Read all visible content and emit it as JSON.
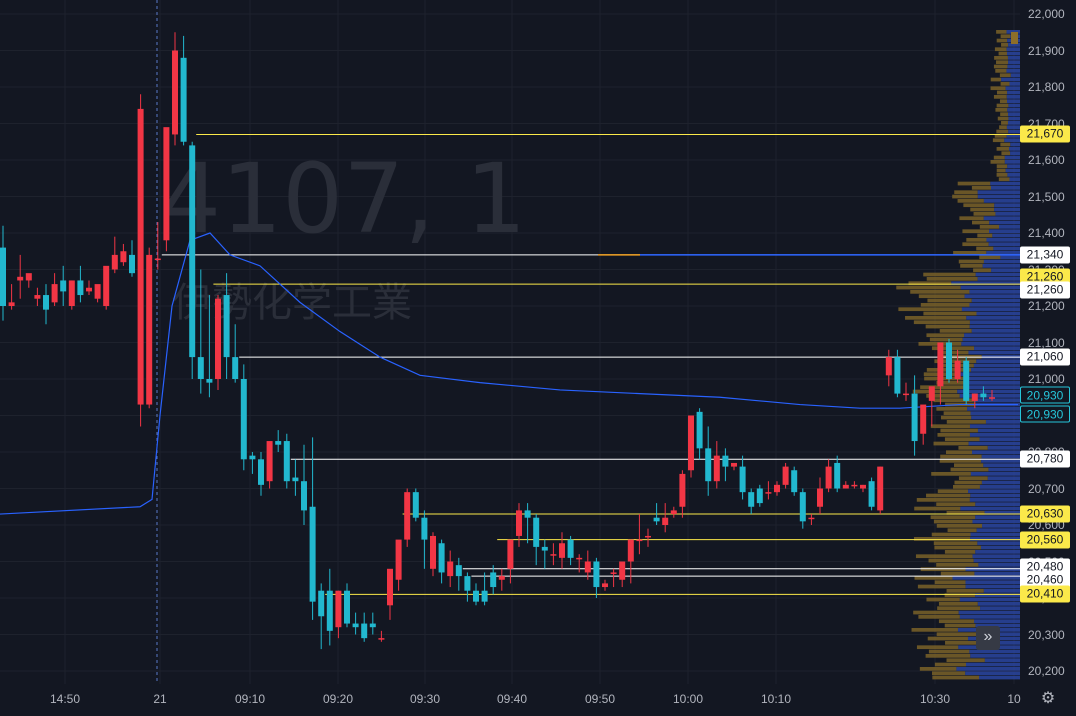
{
  "watermark": {
    "code": "4107, 1",
    "name": "伊勢化学工業"
  },
  "colors": {
    "background": "#131722",
    "up": "#f23645",
    "down": "#22ab94",
    "down_display": "#26c6da",
    "vwap": "#2962ff",
    "vp_up": "#8d6e2a",
    "vp_down": "#2a45a0",
    "level_yellow": "#fbe94a",
    "level_white": "#ffffff"
  },
  "price_axis": {
    "ticks": [
      "22,000",
      "21,900",
      "21,800",
      "21,700",
      "21,600",
      "21,500",
      "21,400",
      "21,300",
      "21,200",
      "21,100",
      "21,000",
      "20,900",
      "20,800",
      "20,700",
      "20,600",
      "20,500",
      "20,400",
      "20,300",
      "20,200"
    ]
  },
  "time_axis": {
    "ticks": [
      "14:50",
      "21",
      "09:10",
      "09:20",
      "09:30",
      "09:40",
      "09:50",
      "10:00",
      "10:10",
      "10:30",
      "10"
    ]
  },
  "price_tags": [
    {
      "label": "21,670",
      "style": "yellow",
      "value": 21670
    },
    {
      "label": "21,340",
      "style": "white",
      "value": 21340
    },
    {
      "label": "21,260",
      "style": "yellow",
      "value": 21280
    },
    {
      "label": "21,260",
      "style": "white",
      "value": 21245
    },
    {
      "label": "21,060",
      "style": "white",
      "value": 21060
    },
    {
      "label": "20,930",
      "style": "cyan",
      "value": 20955
    },
    {
      "label": "20,930",
      "style": "cyan",
      "value": 20905
    },
    {
      "label": "20,780",
      "style": "white",
      "value": 20780
    },
    {
      "label": "20,630",
      "style": "yellow",
      "value": 20630
    },
    {
      "label": "20,560",
      "style": "yellow",
      "value": 20560
    },
    {
      "label": "20,480",
      "style": "white",
      "value": 20485
    },
    {
      "label": "20,460",
      "style": "white",
      "value": 20450
    },
    {
      "label": "20,410",
      "style": "yellow",
      "value": 20410
    }
  ],
  "level_lines": [
    {
      "price": 21670,
      "start": 22,
      "color": "yellow"
    },
    {
      "price": 21340,
      "start": 18,
      "color": "white"
    },
    {
      "price": 21260,
      "start": 24,
      "color": "yellow"
    },
    {
      "price": 21060,
      "start": 27,
      "color": "white"
    },
    {
      "price": 20780,
      "start": 33,
      "color": "white"
    },
    {
      "price": 20630,
      "start": 46,
      "color": "yellow"
    },
    {
      "price": 20560,
      "start": 57,
      "color": "yellow"
    },
    {
      "price": 20480,
      "start": 53,
      "color": "white"
    },
    {
      "price": 20460,
      "start": 54,
      "color": "white"
    },
    {
      "price": 20410,
      "start": 37,
      "color": "yellow"
    }
  ],
  "buttons": {
    "scroll_right": "»",
    "settings": "⚙"
  },
  "chart_data": {
    "type": "candlestick",
    "price_range": [
      20170,
      22030
    ],
    "candles": [
      [
        21360,
        21420,
        21200,
        21160
      ],
      [
        21200,
        21260,
        21210,
        21190
      ],
      [
        21270,
        21340,
        21280,
        21220
      ],
      [
        21270,
        21280,
        21290,
        21250
      ],
      [
        21220,
        21250,
        21230,
        21200
      ],
      [
        21230,
        21260,
        21190,
        21150
      ],
      [
        21210,
        21290,
        21260,
        21200
      ],
      [
        21270,
        21310,
        21240,
        21200
      ],
      [
        21200,
        21270,
        21270,
        21190
      ],
      [
        21270,
        21310,
        21230,
        21210
      ],
      [
        21240,
        21270,
        21250,
        21230
      ],
      [
        21220,
        21240,
        21260,
        21210
      ],
      [
        21200,
        21300,
        21310,
        21190
      ],
      [
        21300,
        21390,
        21340,
        21290
      ],
      [
        21320,
        21370,
        21350,
        21310
      ],
      [
        21340,
        21380,
        21290,
        21280
      ],
      [
        20930,
        21780,
        21740,
        20870
      ],
      [
        20930,
        21360,
        21340,
        20920
      ],
      [
        21330,
        21430,
        21330,
        21300
      ],
      [
        21380,
        21680,
        21690,
        21350
      ],
      [
        21670,
        21950,
        21900,
        21640
      ],
      [
        21880,
        21940,
        21650,
        21640
      ],
      [
        21640,
        21650,
        21060,
        21000
      ],
      [
        21060,
        21300,
        21000,
        20960
      ],
      [
        21000,
        21230,
        20990,
        20950
      ],
      [
        21000,
        21230,
        21220,
        20970
      ],
      [
        21230,
        21290,
        21060,
        21000
      ],
      [
        21060,
        21150,
        21000,
        20990
      ],
      [
        21000,
        21040,
        20780,
        20750
      ],
      [
        20790,
        20800,
        20780,
        20740
      ],
      [
        20780,
        20800,
        20710,
        20680
      ],
      [
        20720,
        20810,
        20830,
        20700
      ],
      [
        20830,
        20860,
        20820,
        20800
      ],
      [
        20830,
        20850,
        20720,
        20700
      ],
      [
        20730,
        20780,
        20720,
        20680
      ],
      [
        20720,
        20820,
        20640,
        20600
      ],
      [
        20650,
        20840,
        20390,
        20340
      ],
      [
        20420,
        20440,
        20350,
        20260
      ],
      [
        20420,
        20480,
        20310,
        20270
      ],
      [
        20320,
        20420,
        20420,
        20290
      ],
      [
        20420,
        20440,
        20330,
        20320
      ],
      [
        20330,
        20360,
        20320,
        20300
      ],
      [
        20330,
        20360,
        20290,
        20280
      ],
      [
        20330,
        20360,
        20320,
        20300
      ],
      [
        20290,
        20310,
        20290,
        20280
      ],
      [
        20380,
        20460,
        20480,
        20340
      ],
      [
        20450,
        20530,
        20560,
        20420
      ],
      [
        20560,
        20700,
        20690,
        20540
      ],
      [
        20690,
        20700,
        20620,
        20610
      ],
      [
        20620,
        20640,
        20560,
        20480
      ],
      [
        20480,
        20580,
        20570,
        20460
      ],
      [
        20550,
        20560,
        20470,
        20440
      ],
      [
        20460,
        20530,
        20500,
        20430
      ],
      [
        20490,
        20510,
        20460,
        20420
      ],
      [
        20460,
        20470,
        20420,
        20390
      ],
      [
        20420,
        20440,
        20390,
        20380
      ],
      [
        20420,
        20470,
        20390,
        20380
      ],
      [
        20470,
        20490,
        20430,
        20410
      ],
      [
        20450,
        20480,
        20460,
        20420
      ],
      [
        20480,
        20530,
        20560,
        20440
      ],
      [
        20570,
        20660,
        20640,
        20540
      ],
      [
        20640,
        20660,
        20620,
        20550
      ],
      [
        20620,
        20630,
        20540,
        20490
      ],
      [
        20540,
        20560,
        20530,
        20480
      ],
      [
        20520,
        20550,
        20520,
        20490
      ],
      [
        20510,
        20580,
        20550,
        20480
      ],
      [
        20560,
        20570,
        20510,
        20490
      ],
      [
        20510,
        20520,
        20510,
        20470
      ],
      [
        20470,
        20530,
        20500,
        20450
      ],
      [
        20500,
        20510,
        20430,
        20400
      ],
      [
        20430,
        20450,
        20440,
        20420
      ],
      [
        20470,
        20480,
        20470,
        20430
      ],
      [
        20450,
        20500,
        20500,
        20430
      ],
      [
        20500,
        20560,
        20560,
        20440
      ],
      [
        20560,
        20630,
        20560,
        20520
      ],
      [
        20570,
        20590,
        20570,
        20540
      ],
      [
        20620,
        20660,
        20610,
        20600
      ],
      [
        20600,
        20660,
        20620,
        20580
      ],
      [
        20630,
        20650,
        20640,
        20620
      ],
      [
        20650,
        20750,
        20740,
        20620
      ],
      [
        20750,
        20880,
        20900,
        20730
      ],
      [
        20910,
        20920,
        20810,
        20780
      ],
      [
        20810,
        20870,
        20720,
        20680
      ],
      [
        20720,
        20830,
        20790,
        20700
      ],
      [
        20790,
        20810,
        20760,
        20720
      ],
      [
        20760,
        20770,
        20770,
        20750
      ],
      [
        20760,
        20790,
        20690,
        20670
      ],
      [
        20690,
        20700,
        20650,
        20630
      ],
      [
        20700,
        20710,
        20660,
        20650
      ],
      [
        20690,
        20720,
        20690,
        20670
      ],
      [
        20690,
        20720,
        20710,
        20680
      ],
      [
        20710,
        20770,
        20760,
        20700
      ],
      [
        20750,
        20760,
        20690,
        20680
      ],
      [
        20690,
        20700,
        20610,
        20590
      ],
      [
        20620,
        20630,
        20620,
        20600
      ],
      [
        20650,
        20730,
        20700,
        20630
      ],
      [
        20700,
        20780,
        20760,
        20690
      ],
      [
        20770,
        20790,
        20700,
        20690
      ],
      [
        20700,
        20720,
        20710,
        20700
      ],
      [
        20710,
        20720,
        20710,
        20700
      ],
      [
        20700,
        20710,
        20710,
        20690
      ],
      [
        20720,
        20730,
        20650,
        20640
      ],
      [
        20640,
        20760,
        20760,
        20630
      ],
      [
        21010,
        21080,
        21060,
        20980
      ],
      [
        21060,
        21080,
        20960,
        20950
      ],
      [
        20960,
        20990,
        20960,
        20940
      ],
      [
        20960,
        21010,
        20830,
        20790
      ],
      [
        20850,
        20870,
        20930,
        20820
      ],
      [
        20940,
        20960,
        20980,
        20870
      ],
      [
        20980,
        21100,
        21100,
        20930
      ],
      [
        21100,
        21110,
        21000,
        20990
      ],
      [
        21000,
        21080,
        21050,
        20990
      ],
      [
        21050,
        21060,
        20940,
        20930
      ],
      [
        20940,
        20960,
        20960,
        20920
      ],
      [
        20960,
        20980,
        20950,
        20940
      ],
      [
        20950,
        20970,
        20950,
        20940
      ]
    ],
    "vwap": [
      [
        0,
        20630
      ],
      [
        140,
        20650
      ],
      [
        152,
        20670
      ],
      [
        160,
        20900
      ],
      [
        172,
        21200
      ],
      [
        190,
        21380
      ],
      [
        210,
        21400
      ],
      [
        230,
        21340
      ],
      [
        260,
        21310
      ],
      [
        300,
        21210
      ],
      [
        340,
        21130
      ],
      [
        380,
        21060
      ],
      [
        420,
        21010
      ],
      [
        480,
        20990
      ],
      [
        560,
        20970
      ],
      [
        640,
        20960
      ],
      [
        720,
        20950
      ],
      [
        800,
        20930
      ],
      [
        860,
        20920
      ],
      [
        900,
        20920
      ],
      [
        960,
        20930
      ],
      [
        1018,
        20930
      ]
    ],
    "volume_profile": {
      "rows": 150,
      "seed": 7
    }
  }
}
